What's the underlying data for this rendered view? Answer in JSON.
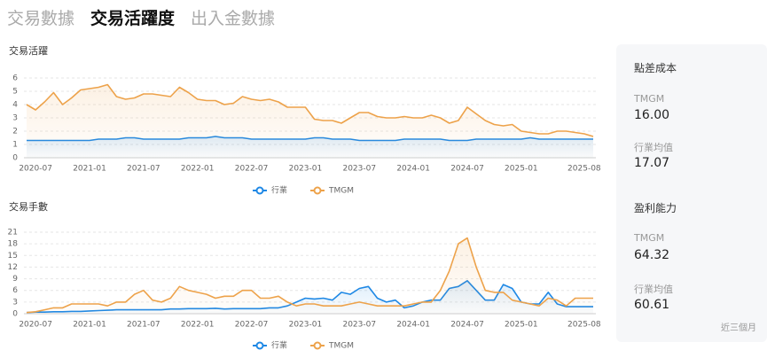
{
  "tabs": [
    "交易數據",
    "交易活躍度",
    "出入金數據"
  ],
  "active_tab": 1,
  "chart_data": [
    {
      "type": "line",
      "title": "交易活躍",
      "categories": [
        null,
        "2020-07",
        null,
        null,
        null,
        null,
        null,
        "2021-01",
        null,
        null,
        null,
        null,
        null,
        "2021-07",
        null,
        null,
        null,
        null,
        null,
        "2022-01",
        null,
        null,
        null,
        null,
        null,
        "2022-07",
        null,
        null,
        null,
        null,
        null,
        "2023-01",
        null,
        null,
        null,
        null,
        null,
        "2023-07",
        null,
        null,
        null,
        null,
        null,
        "2024-01",
        null,
        null,
        null,
        null,
        null,
        "2024-07",
        null,
        null,
        null,
        null,
        null,
        "2025-01",
        null,
        null,
        null,
        null,
        null,
        null,
        "2025-08",
        null
      ],
      "series": [
        {
          "name": "行業",
          "color": "#1e88e5",
          "values": [
            1.3,
            1.3,
            1.3,
            1.3,
            1.3,
            1.3,
            1.3,
            1.3,
            1.4,
            1.4,
            1.4,
            1.5,
            1.5,
            1.4,
            1.4,
            1.4,
            1.4,
            1.4,
            1.5,
            1.5,
            1.5,
            1.6,
            1.5,
            1.5,
            1.5,
            1.4,
            1.4,
            1.4,
            1.4,
            1.4,
            1.4,
            1.4,
            1.5,
            1.5,
            1.4,
            1.4,
            1.4,
            1.3,
            1.3,
            1.3,
            1.3,
            1.3,
            1.4,
            1.4,
            1.4,
            1.4,
            1.4,
            1.3,
            1.3,
            1.3,
            1.4,
            1.4,
            1.4,
            1.4,
            1.4,
            1.4,
            1.5,
            1.4,
            1.4,
            1.4,
            1.4,
            1.4,
            1.4,
            1.4
          ]
        },
        {
          "name": "TMGM",
          "color": "#eda24a",
          "values": [
            4.0,
            3.6,
            4.2,
            4.9,
            4.0,
            4.5,
            5.1,
            5.2,
            5.3,
            5.5,
            4.6,
            4.4,
            4.5,
            4.8,
            4.8,
            4.7,
            4.6,
            5.3,
            4.9,
            4.4,
            4.3,
            4.3,
            4.0,
            4.1,
            4.6,
            4.4,
            4.3,
            4.4,
            4.2,
            3.8,
            3.8,
            3.8,
            2.9,
            2.8,
            2.8,
            2.6,
            3.0,
            3.4,
            3.4,
            3.1,
            3.0,
            3.0,
            3.1,
            3.0,
            3.0,
            3.2,
            3.0,
            2.6,
            2.8,
            3.8,
            3.3,
            2.8,
            2.5,
            2.4,
            2.5,
            2.0,
            1.9,
            1.8,
            1.8,
            2.0,
            2.0,
            1.9,
            1.8,
            1.6
          ]
        }
      ],
      "ylim": [
        0,
        6
      ],
      "yticks": [
        0,
        1,
        2,
        3,
        4,
        5,
        6
      ],
      "grid": true
    },
    {
      "type": "line",
      "title": "交易手數",
      "categories": [
        null,
        "2020-07",
        null,
        null,
        null,
        null,
        null,
        "2021-01",
        null,
        null,
        null,
        null,
        null,
        "2021-07",
        null,
        null,
        null,
        null,
        null,
        "2022-01",
        null,
        null,
        null,
        null,
        null,
        "2022-07",
        null,
        null,
        null,
        null,
        null,
        "2023-01",
        null,
        null,
        null,
        null,
        null,
        "2023-07",
        null,
        null,
        null,
        null,
        null,
        "2024-01",
        null,
        null,
        null,
        null,
        null,
        "2024-07",
        null,
        null,
        null,
        null,
        null,
        "2025-01",
        null,
        null,
        null,
        null,
        null,
        null,
        "2025-08",
        null
      ],
      "series": [
        {
          "name": "行業",
          "color": "#1e88e5",
          "values": [
            0.3,
            0.4,
            0.4,
            0.5,
            0.5,
            0.6,
            0.6,
            0.7,
            0.8,
            0.9,
            1,
            1,
            1,
            1,
            1,
            1,
            1.2,
            1.2,
            1.3,
            1.3,
            1.3,
            1.4,
            1.2,
            1.3,
            1.3,
            1.3,
            1.3,
            1.5,
            1.5,
            2,
            3,
            4,
            3.8,
            4,
            3.5,
            5.5,
            5,
            6.5,
            7,
            4,
            3,
            3.5,
            1.5,
            2,
            3,
            3.5,
            3.5,
            6.5,
            7,
            8.5,
            6,
            3.5,
            3.5,
            7.5,
            6.5,
            3,
            2.5,
            2.5,
            5.5,
            2.5,
            1.8,
            1.8,
            1.8,
            1.8
          ]
        },
        {
          "name": "TMGM",
          "color": "#eda24a",
          "values": [
            0.3,
            0.5,
            1,
            1.5,
            1.5,
            2.5,
            2.5,
            2.5,
            2.5,
            2,
            3,
            3,
            5,
            6,
            3.5,
            3,
            4,
            7,
            6,
            5.5,
            5,
            4,
            4.5,
            4.5,
            6,
            6,
            4,
            4,
            4.5,
            3,
            2,
            2.5,
            2.5,
            2,
            2,
            2,
            2.5,
            3,
            2.5,
            2,
            2,
            2,
            2,
            2.5,
            3,
            3,
            6,
            11,
            18,
            19.5,
            12,
            6,
            5.5,
            5.5,
            3.5,
            3,
            2.5,
            2,
            4,
            3.5,
            2,
            4,
            4,
            4
          ]
        }
      ],
      "ylim": [
        0,
        21
      ],
      "yticks": [
        0,
        3,
        6,
        9,
        12,
        15,
        18,
        21
      ],
      "grid": true
    }
  ],
  "side_panel": {
    "sections": [
      {
        "title": "點差成本",
        "items": [
          {
            "label": "TMGM",
            "value": "16.00"
          },
          {
            "label": "行業均值",
            "value": "17.07"
          }
        ]
      },
      {
        "title": "盈利能力",
        "items": [
          {
            "label": "TMGM",
            "value": "64.32"
          },
          {
            "label": "行業均值",
            "value": "60.61"
          }
        ]
      }
    ],
    "footnote": "近三個月"
  }
}
